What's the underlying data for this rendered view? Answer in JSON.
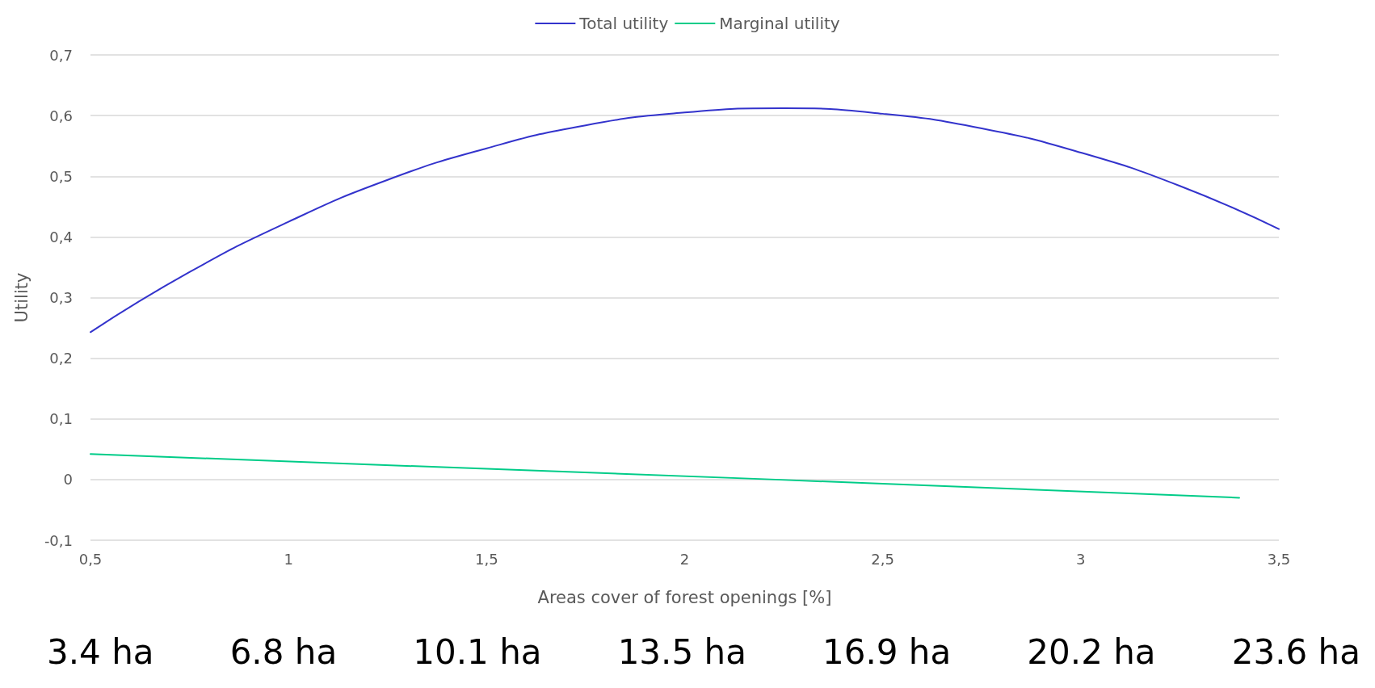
{
  "chart_data": {
    "type": "line",
    "xlabel": "Areas cover of forest openings [%]",
    "ylabel": "Utility",
    "x": [
      0.5,
      0.75,
      1,
      1.25,
      1.5,
      1.75,
      2,
      2.25,
      2.5,
      2.75,
      3,
      3.25,
      3.5
    ],
    "series": [
      {
        "name": "Total utility",
        "color": "#3333cc",
        "values": [
          0.243,
          0.342,
          0.425,
          0.494,
          0.546,
          0.584,
          0.605,
          0.612,
          0.603,
          0.579,
          0.539,
          0.484,
          0.413
        ]
      },
      {
        "name": "Marginal utility",
        "color": "#00cc88",
        "x": [
          0.5,
          2.23,
          3.4
        ],
        "values": [
          0.042,
          0,
          -0.03
        ]
      }
    ],
    "xlim": [
      0.5,
      3.5
    ],
    "xticks": [
      {
        "value": 0.5,
        "label": "0,5"
      },
      1,
      {
        "value": 1.5,
        "label": "1,5"
      },
      2,
      {
        "value": 2.5,
        "label": "2,5"
      },
      3,
      {
        "value": 3.5,
        "label": "3,5"
      }
    ],
    "ylim": [
      -0.1,
      0.7
    ],
    "yticks": [
      {
        "value": -0.1,
        "label": "-0,1"
      },
      0,
      {
        "value": 0.1,
        "label": "0,1"
      },
      {
        "value": 0.2,
        "label": "0,2"
      },
      {
        "value": 0.3,
        "label": "0,3"
      },
      {
        "value": 0.4,
        "label": "0,4"
      },
      {
        "value": 0.5,
        "label": "0,5"
      },
      {
        "value": 0.6,
        "label": "0,6"
      },
      {
        "value": 0.7,
        "label": "0,7"
      }
    ],
    "grid": "y",
    "legend": "top",
    "marker": "none",
    "line_style": "solid",
    "annotations": [
      "3.4 ha",
      "6.8 ha",
      "10.1 ha",
      "13.5 ha",
      "16.9 ha",
      "20.2 ha",
      "23.6 ha"
    ]
  }
}
